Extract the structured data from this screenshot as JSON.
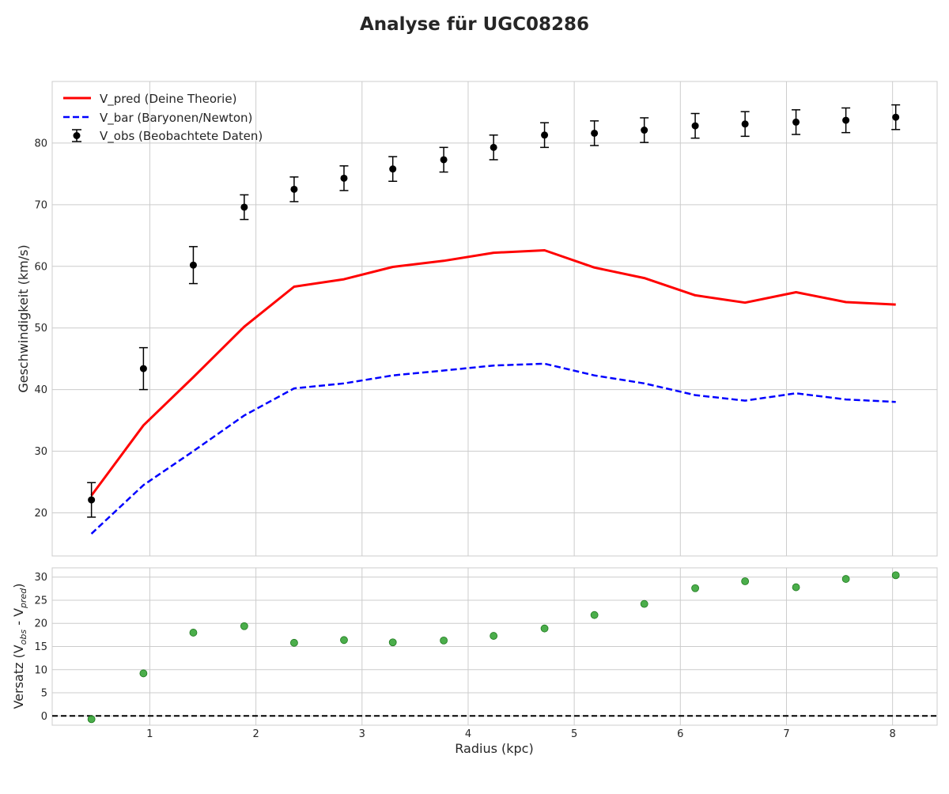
{
  "figure": {
    "title": "Analyse für UGC08286"
  },
  "chart_data": [
    {
      "type": "line",
      "title": "",
      "xlabel": "",
      "ylabel": "Geschwindigkeit (km/s)",
      "xlim": [
        0.08,
        8.42
      ],
      "ylim": [
        13,
        90
      ],
      "xticks": [
        1,
        2,
        3,
        4,
        5,
        6,
        7,
        8
      ],
      "yticks": [
        20,
        30,
        40,
        50,
        60,
        70,
        80
      ],
      "grid": true,
      "legend_position": "top-left",
      "legend": [
        {
          "label": "V_pred (Deine Theorie)",
          "color": "#ff0000",
          "style": "solid"
        },
        {
          "label": "V_bar (Baryonen/Newton)",
          "color": "#0000ff",
          "style": "dashed"
        },
        {
          "label": "V_obs (Beobachtete Daten)",
          "color": "#000000",
          "style": "errorbar"
        }
      ],
      "x": [
        0.45,
        0.94,
        1.41,
        1.89,
        2.36,
        2.83,
        3.29,
        3.77,
        4.24,
        4.72,
        5.19,
        5.66,
        6.14,
        6.61,
        7.09,
        7.56,
        8.03
      ],
      "series": [
        {
          "name": "V_pred (Deine Theorie)",
          "color": "#ff0000",
          "style": "solid",
          "values": [
            22.8,
            34.2,
            42.0,
            50.2,
            56.7,
            57.9,
            59.9,
            60.9,
            62.2,
            62.6,
            59.8,
            58.1,
            55.3,
            54.1,
            55.8,
            54.2,
            53.8
          ]
        },
        {
          "name": "V_bar (Baryonen/Newton)",
          "color": "#0000ff",
          "style": "dashed",
          "values": [
            16.6,
            24.5,
            30.0,
            35.8,
            40.2,
            41.0,
            42.3,
            43.1,
            43.9,
            44.2,
            42.3,
            41.0,
            39.1,
            38.2,
            39.4,
            38.4,
            38.0
          ]
        },
        {
          "name": "V_obs (Beobachtete Daten)",
          "color": "#000000",
          "style": "errorbar",
          "values": [
            22.1,
            43.4,
            60.2,
            69.6,
            72.5,
            74.3,
            75.8,
            77.3,
            79.3,
            81.3,
            81.6,
            82.1,
            82.8,
            83.1,
            83.4,
            83.7,
            84.2
          ],
          "errors": [
            2.8,
            3.4,
            3.0,
            2.0,
            2.0,
            2.0,
            2.0,
            2.0,
            2.0,
            2.0,
            2.0,
            2.0,
            2.0,
            2.0,
            2.0,
            2.0,
            2.0
          ]
        }
      ]
    },
    {
      "type": "scatter",
      "title": "",
      "xlabel": "Radius (kpc)",
      "ylabel_main": "Versatz (V",
      "ylabel_sub_obs": "obs",
      "ylabel_mid": " - V",
      "ylabel_sub_pred": "pred",
      "ylabel_end": ")",
      "xlim": [
        0.08,
        8.42
      ],
      "ylim": [
        -2,
        32
      ],
      "xticks": [
        1,
        2,
        3,
        4,
        5,
        6,
        7,
        8
      ],
      "yticks": [
        0,
        5,
        10,
        15,
        20,
        25,
        30
      ],
      "grid": true,
      "reference_line": {
        "y": 0,
        "color": "#000000",
        "style": "dashed"
      },
      "x": [
        0.45,
        0.94,
        1.41,
        1.89,
        2.36,
        2.83,
        3.29,
        3.77,
        4.24,
        4.72,
        5.19,
        5.66,
        6.14,
        6.61,
        7.09,
        7.56,
        8.03
      ],
      "series": [
        {
          "color": "#2ca02c",
          "values": [
            -0.7,
            9.2,
            18.0,
            19.4,
            15.8,
            16.4,
            15.9,
            16.3,
            17.3,
            18.9,
            21.8,
            24.2,
            27.6,
            29.1,
            27.8,
            29.6,
            30.4
          ]
        }
      ]
    }
  ]
}
